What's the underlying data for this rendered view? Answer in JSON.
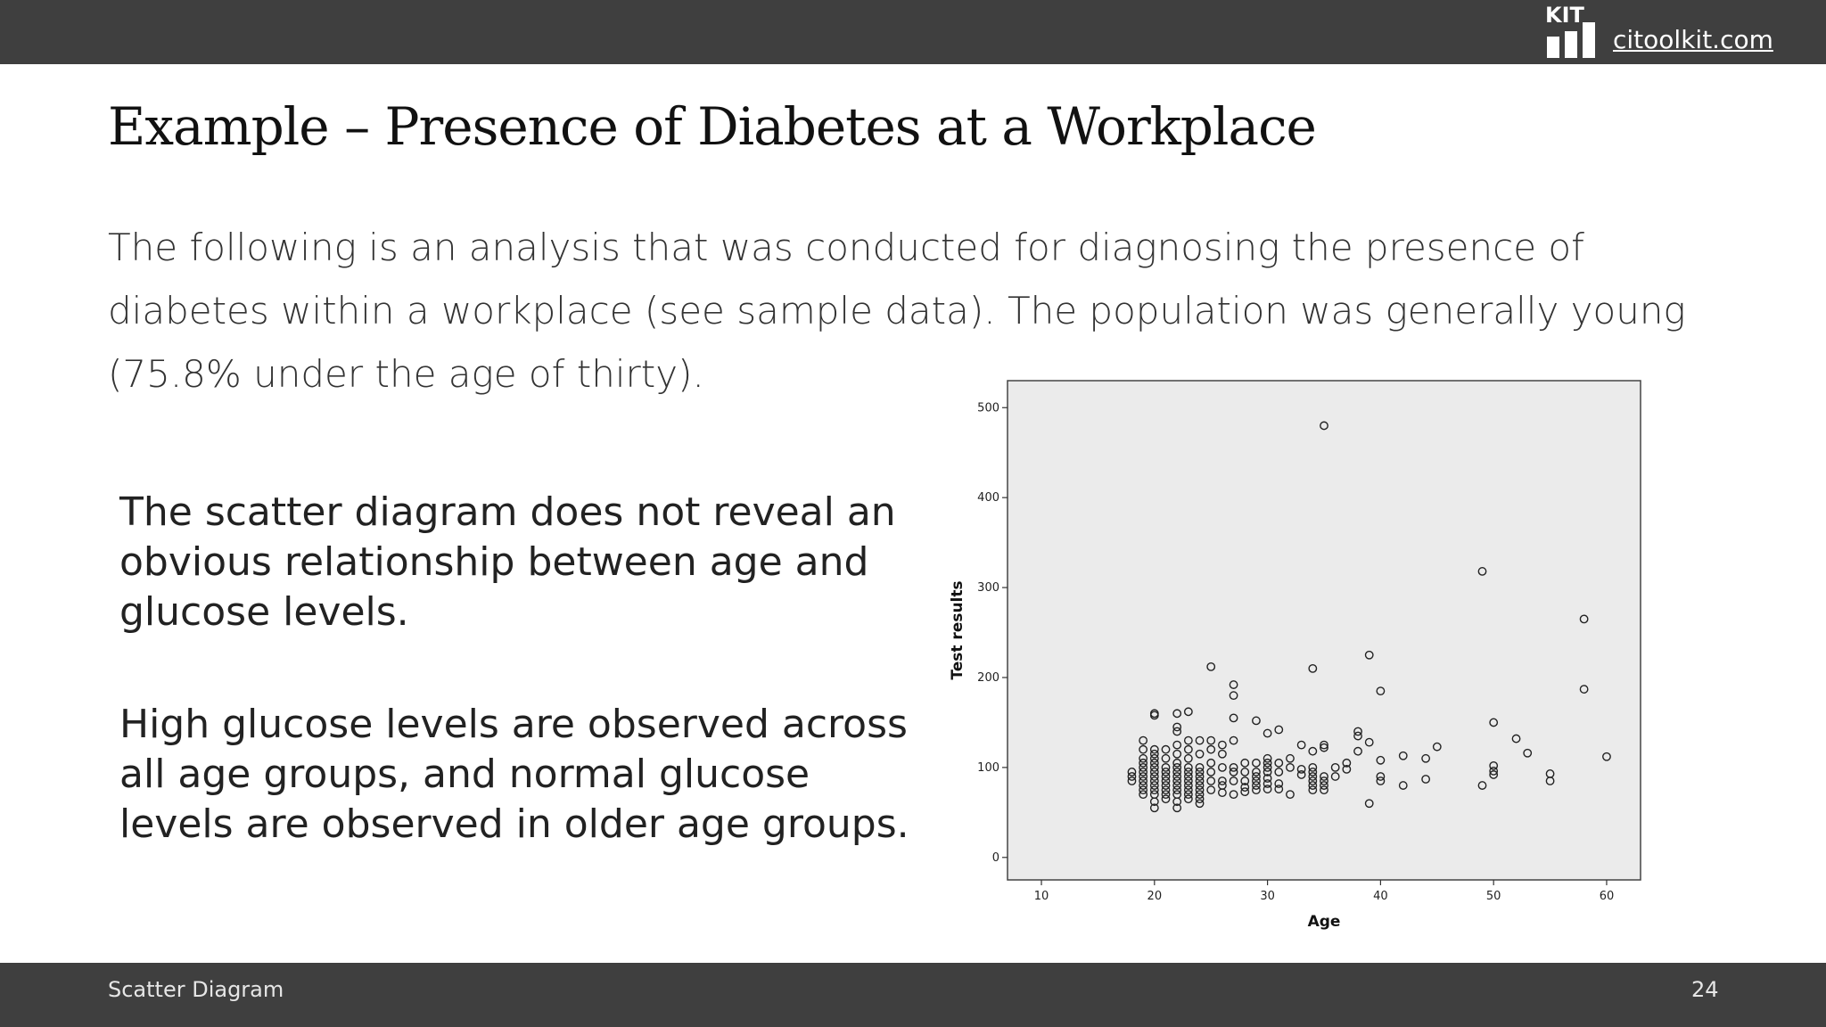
{
  "header": {
    "logo_text": "KIT",
    "site_link": "citoolkit.com"
  },
  "slide": {
    "title": "Example – Presence of Diabetes at a Workplace",
    "intro": "The following is an analysis that was conducted for diagnosing the presence of diabetes within a workplace (see sample data). The population was generally young (75.8% under the age of thirty).",
    "note_1": "The scatter diagram does not reveal an obvious relationship between age and glucose levels.",
    "note_2": "High glucose levels are observed across all age groups, and normal glucose levels are observed in older age groups."
  },
  "footer": {
    "label": "Scatter Diagram",
    "page_number": "24"
  },
  "colors": {
    "bar": "#3f3f3f",
    "plot_background": "#ebebeb",
    "marker": "#222222"
  },
  "chart_data": {
    "type": "scatter",
    "title": "",
    "xlabel": "Age",
    "ylabel": "Test results",
    "xlim": [
      7,
      63
    ],
    "ylim": [
      -25,
      530
    ],
    "x_ticks": [
      10,
      20,
      30,
      40,
      50,
      60
    ],
    "y_ticks": [
      0,
      100,
      200,
      300,
      400,
      500
    ],
    "grid": false,
    "legend": "none",
    "points": [
      [
        18,
        95
      ],
      [
        18,
        90
      ],
      [
        18,
        85
      ],
      [
        19,
        130
      ],
      [
        19,
        120
      ],
      [
        19,
        110
      ],
      [
        19,
        105
      ],
      [
        19,
        100
      ],
      [
        19,
        95
      ],
      [
        19,
        90
      ],
      [
        19,
        85
      ],
      [
        19,
        80
      ],
      [
        19,
        75
      ],
      [
        19,
        70
      ],
      [
        20,
        160
      ],
      [
        20,
        158
      ],
      [
        20,
        120
      ],
      [
        20,
        115
      ],
      [
        20,
        110
      ],
      [
        20,
        105
      ],
      [
        20,
        100
      ],
      [
        20,
        95
      ],
      [
        20,
        90
      ],
      [
        20,
        85
      ],
      [
        20,
        80
      ],
      [
        20,
        75
      ],
      [
        20,
        70
      ],
      [
        20,
        62
      ],
      [
        20,
        55
      ],
      [
        21,
        120
      ],
      [
        21,
        110
      ],
      [
        21,
        100
      ],
      [
        21,
        95
      ],
      [
        21,
        90
      ],
      [
        21,
        85
      ],
      [
        21,
        80
      ],
      [
        21,
        75
      ],
      [
        21,
        70
      ],
      [
        21,
        65
      ],
      [
        22,
        160
      ],
      [
        22,
        145
      ],
      [
        22,
        140
      ],
      [
        22,
        125
      ],
      [
        22,
        115
      ],
      [
        22,
        105
      ],
      [
        22,
        100
      ],
      [
        22,
        95
      ],
      [
        22,
        90
      ],
      [
        22,
        85
      ],
      [
        22,
        80
      ],
      [
        22,
        75
      ],
      [
        22,
        70
      ],
      [
        22,
        62
      ],
      [
        22,
        55
      ],
      [
        23,
        162
      ],
      [
        23,
        130
      ],
      [
        23,
        120
      ],
      [
        23,
        110
      ],
      [
        23,
        100
      ],
      [
        23,
        95
      ],
      [
        23,
        90
      ],
      [
        23,
        85
      ],
      [
        23,
        80
      ],
      [
        23,
        75
      ],
      [
        23,
        70
      ],
      [
        23,
        65
      ],
      [
        24,
        130
      ],
      [
        24,
        115
      ],
      [
        24,
        100
      ],
      [
        24,
        95
      ],
      [
        24,
        90
      ],
      [
        24,
        85
      ],
      [
        24,
        80
      ],
      [
        24,
        75
      ],
      [
        24,
        70
      ],
      [
        24,
        65
      ],
      [
        24,
        60
      ],
      [
        25,
        212
      ],
      [
        25,
        130
      ],
      [
        25,
        120
      ],
      [
        25,
        105
      ],
      [
        25,
        95
      ],
      [
        25,
        85
      ],
      [
        25,
        75
      ],
      [
        26,
        125
      ],
      [
        26,
        115
      ],
      [
        26,
        100
      ],
      [
        26,
        85
      ],
      [
        26,
        80
      ],
      [
        26,
        72
      ],
      [
        27,
        192
      ],
      [
        27,
        180
      ],
      [
        27,
        155
      ],
      [
        27,
        130
      ],
      [
        27,
        100
      ],
      [
        27,
        95
      ],
      [
        27,
        85
      ],
      [
        27,
        70
      ],
      [
        28,
        105
      ],
      [
        28,
        95
      ],
      [
        28,
        85
      ],
      [
        28,
        78
      ],
      [
        28,
        73
      ],
      [
        29,
        152
      ],
      [
        29,
        105
      ],
      [
        29,
        95
      ],
      [
        29,
        90
      ],
      [
        29,
        85
      ],
      [
        29,
        80
      ],
      [
        29,
        75
      ],
      [
        30,
        138
      ],
      [
        30,
        110
      ],
      [
        30,
        105
      ],
      [
        30,
        100
      ],
      [
        30,
        95
      ],
      [
        30,
        88
      ],
      [
        30,
        82
      ],
      [
        30,
        76
      ],
      [
        31,
        142
      ],
      [
        31,
        105
      ],
      [
        31,
        95
      ],
      [
        31,
        82
      ],
      [
        31,
        76
      ],
      [
        32,
        110
      ],
      [
        32,
        100
      ],
      [
        32,
        70
      ],
      [
        33,
        125
      ],
      [
        33,
        98
      ],
      [
        33,
        92
      ],
      [
        34,
        210
      ],
      [
        34,
        118
      ],
      [
        34,
        100
      ],
      [
        34,
        95
      ],
      [
        34,
        90
      ],
      [
        34,
        85
      ],
      [
        34,
        80
      ],
      [
        34,
        75
      ],
      [
        35,
        480
      ],
      [
        35,
        125
      ],
      [
        35,
        122
      ],
      [
        35,
        90
      ],
      [
        35,
        85
      ],
      [
        35,
        80
      ],
      [
        35,
        75
      ],
      [
        36,
        100
      ],
      [
        36,
        90
      ],
      [
        37,
        105
      ],
      [
        37,
        98
      ],
      [
        38,
        140
      ],
      [
        38,
        135
      ],
      [
        38,
        118
      ],
      [
        39,
        225
      ],
      [
        39,
        128
      ],
      [
        39,
        60
      ],
      [
        40,
        185
      ],
      [
        40,
        108
      ],
      [
        40,
        90
      ],
      [
        40,
        85
      ],
      [
        42,
        113
      ],
      [
        42,
        80
      ],
      [
        44,
        110
      ],
      [
        44,
        87
      ],
      [
        45,
        123
      ],
      [
        49,
        318
      ],
      [
        49,
        80
      ],
      [
        50,
        150
      ],
      [
        50,
        102
      ],
      [
        50,
        96
      ],
      [
        50,
        92
      ],
      [
        52,
        132
      ],
      [
        53,
        116
      ],
      [
        55,
        93
      ],
      [
        55,
        85
      ],
      [
        58,
        265
      ],
      [
        58,
        187
      ],
      [
        60,
        112
      ]
    ]
  }
}
